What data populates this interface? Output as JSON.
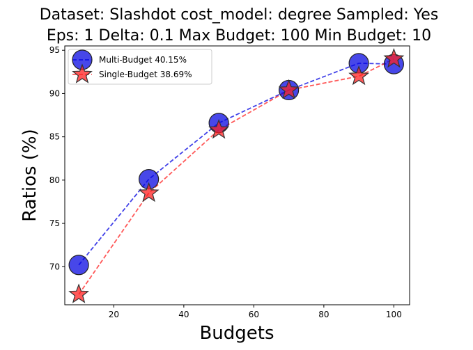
{
  "chart_data": {
    "type": "line",
    "title_line1": "Dataset: Slashdot cost_model: degree Sampled: Yes",
    "title_line2": "Eps: 1 Delta: 0.1 Max Budget: 100 Min Budget: 10",
    "xlabel": "Budgets",
    "ylabel": "Ratios (%)",
    "xlim": [
      6,
      104.5
    ],
    "ylim": [
      65.6,
      95.5
    ],
    "x": [
      10,
      30,
      50,
      70,
      90,
      100
    ],
    "xticks": [
      20,
      40,
      60,
      80,
      100
    ],
    "yticks": [
      70,
      75,
      80,
      85,
      90,
      95
    ],
    "grid": false,
    "legend_position": "top-left",
    "series": [
      {
        "name": "Multi-Budget 40.15%",
        "marker": "circle",
        "color": "#0000e0",
        "values": [
          70.2,
          80.1,
          86.6,
          90.4,
          93.5,
          93.4
        ]
      },
      {
        "name": "Single-Budget 38.69%",
        "marker": "star",
        "color": "#ff2020",
        "values": [
          66.8,
          78.5,
          85.8,
          90.4,
          92.0,
          94.0
        ]
      }
    ]
  }
}
